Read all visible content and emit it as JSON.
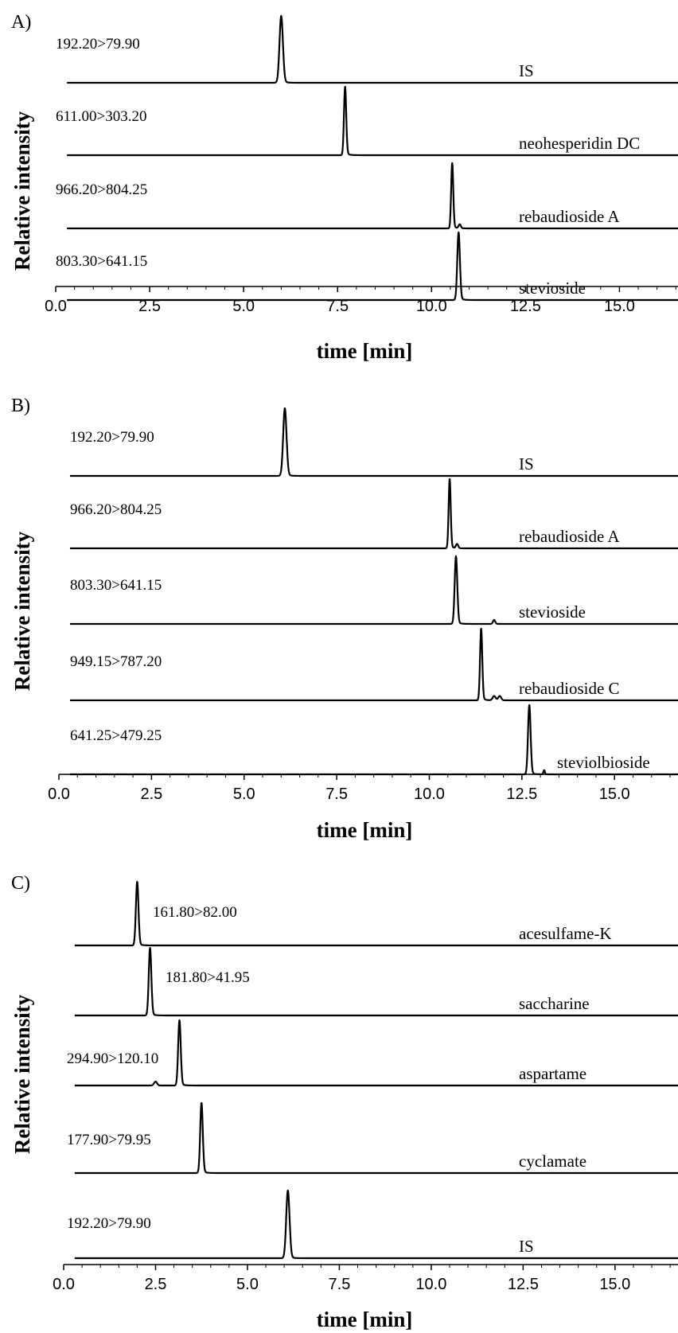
{
  "chart_data": [
    {
      "type": "line",
      "panel_label": "A)",
      "xlabel": "time [min]",
      "ylabel": "Relative intensity",
      "xlim": [
        0,
        16.6
      ],
      "xticks": [
        "0.0",
        "2.5",
        "5.0",
        "7.5",
        "10.0",
        "12.5",
        "15.0"
      ],
      "traces": [
        {
          "transition": "192.20>79.90",
          "compound": "IS",
          "peak_time": 6.0,
          "peak_width": 0.045,
          "small_peaks": []
        },
        {
          "transition": "611.00>303.20",
          "compound": "neohesperidin DC",
          "peak_time": 7.7,
          "peak_width": 0.03,
          "small_peaks": []
        },
        {
          "transition": "966.20>804.25",
          "compound": "rebaudioside A",
          "peak_time": 10.55,
          "peak_width": 0.028,
          "small_peaks": [
            [
              10.75,
              0.03
            ]
          ]
        },
        {
          "transition": "803.30>641.15",
          "compound": "stevioside",
          "peak_time": 10.72,
          "peak_width": 0.035,
          "small_peaks": []
        }
      ]
    },
    {
      "type": "line",
      "panel_label": "B)",
      "xlabel": "time [min]",
      "ylabel": "Relative intensity",
      "xlim": [
        0,
        16.8
      ],
      "xticks": [
        "0.0",
        "2.5",
        "5.0",
        "7.5",
        "10.0",
        "12.5",
        "15.0"
      ],
      "traces": [
        {
          "transition": "192.20>79.90",
          "compound": "IS",
          "peak_time": 6.1,
          "peak_width": 0.045,
          "small_peaks": []
        },
        {
          "transition": "966.20>804.25",
          "compound": "rebaudioside A",
          "peak_time": 10.55,
          "peak_width": 0.028,
          "small_peaks": [
            [
              10.75,
              0.03
            ]
          ]
        },
        {
          "transition": "803.30>641.15",
          "compound": "stevioside",
          "peak_time": 10.72,
          "peak_width": 0.035,
          "small_peaks": [
            [
              11.75,
              0.03
            ]
          ]
        },
        {
          "transition": "949.15>787.20",
          "compound": "rebaudioside C",
          "peak_time": 11.4,
          "peak_width": 0.03,
          "small_peaks": [
            [
              11.75,
              0.04
            ],
            [
              11.9,
              0.04
            ]
          ]
        },
        {
          "transition": "641.25>479.25",
          "compound": "steviolbioside",
          "peak_time": 12.7,
          "peak_width": 0.035,
          "small_peaks": [
            [
              13.1,
              0.02
            ]
          ]
        }
      ]
    },
    {
      "type": "line",
      "panel_label": "C)",
      "xlabel": "time [min]",
      "ylabel": "Relative intensity",
      "xlim": [
        0,
        16.8
      ],
      "xticks": [
        "0.0",
        "2.5",
        "5.0",
        "7.5",
        "10.0",
        "12.5",
        "15.0"
      ],
      "traces": [
        {
          "transition": "161.80>82.00",
          "compound": "acesulfame-K",
          "peak_time": 2.0,
          "peak_width": 0.035,
          "small_peaks": []
        },
        {
          "transition": "181.80>41.95",
          "compound": "saccharine",
          "peak_time": 2.35,
          "peak_width": 0.035,
          "small_peaks": []
        },
        {
          "transition": "294.90>120.10",
          "compound": "aspartame",
          "peak_time": 3.15,
          "peak_width": 0.035,
          "small_peaks": [
            [
              2.5,
              0.04
            ]
          ]
        },
        {
          "transition": "177.90>79.95",
          "compound": "cyclamate",
          "peak_time": 3.75,
          "peak_width": 0.035,
          "small_peaks": []
        },
        {
          "transition": "192.20>79.90",
          "compound": "IS",
          "peak_time": 6.1,
          "peak_width": 0.045,
          "small_peaks": []
        }
      ]
    }
  ]
}
